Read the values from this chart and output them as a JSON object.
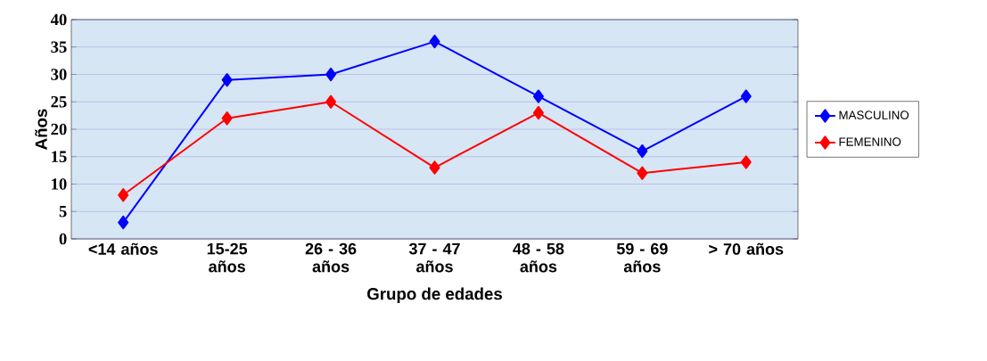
{
  "chart_data": {
    "type": "line",
    "xlabel": "Grupo de edades",
    "ylabel": "Años",
    "categories": [
      "<14 años",
      "15-25 años",
      "26 - 36 años",
      "37 - 47 años",
      "48 - 58 años",
      "59 - 69 años",
      "> 70 años"
    ],
    "series": [
      {
        "name": "MASCULINO",
        "color": "#0000ff",
        "values": [
          3,
          29,
          30,
          36,
          26,
          16,
          26
        ]
      },
      {
        "name": "FEMENINO",
        "color": "#ff0000",
        "values": [
          8,
          22,
          25,
          13,
          23,
          12,
          14
        ]
      }
    ],
    "ylim": [
      0,
      40
    ],
    "yticks": [
      0,
      5,
      10,
      15,
      20,
      25,
      30,
      35,
      40
    ],
    "grid": "y",
    "legend": "right",
    "marker": "diamond",
    "line_style": "solid"
  }
}
